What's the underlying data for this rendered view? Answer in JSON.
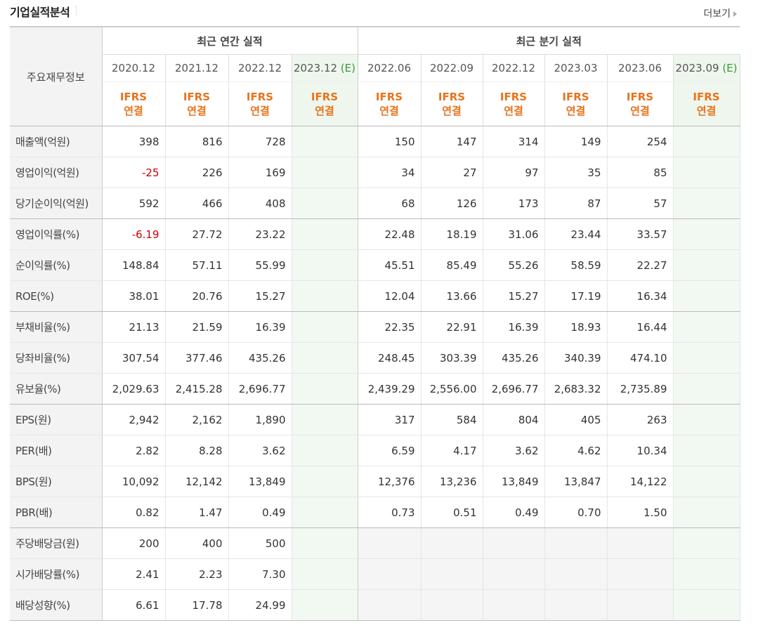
{
  "header": {
    "title": "기업실적분석",
    "more_label": "더보기"
  },
  "table": {
    "row_header": "주요재무정보",
    "annual_group": "최근 연간 실적",
    "quarter_group": "최근 분기 실적",
    "periods": [
      {
        "label": "2020.12",
        "est": ""
      },
      {
        "label": "2021.12",
        "est": ""
      },
      {
        "label": "2022.12",
        "est": ""
      },
      {
        "label": "2023.12",
        "est": "(E)"
      },
      {
        "label": "2022.06",
        "est": ""
      },
      {
        "label": "2022.09",
        "est": ""
      },
      {
        "label": "2022.12",
        "est": ""
      },
      {
        "label": "2023.03",
        "est": ""
      },
      {
        "label": "2023.06",
        "est": ""
      },
      {
        "label": "2023.09",
        "est": "(E)"
      }
    ],
    "ifrs_line1": "IFRS",
    "ifrs_line2": "연결",
    "rows": [
      {
        "label": "매출액(억원)",
        "values": [
          "398",
          "816",
          "728",
          "",
          "150",
          "147",
          "314",
          "149",
          "254",
          ""
        ]
      },
      {
        "label": "영업이익(억원)",
        "values": [
          "-25",
          "226",
          "169",
          "",
          "34",
          "27",
          "97",
          "35",
          "85",
          ""
        ]
      },
      {
        "label": "당기순이익(억원)",
        "values": [
          "592",
          "466",
          "408",
          "",
          "68",
          "126",
          "173",
          "87",
          "57",
          ""
        ]
      },
      {
        "label": "영업이익률(%)",
        "values": [
          "-6.19",
          "27.72",
          "23.22",
          "",
          "22.48",
          "18.19",
          "31.06",
          "23.44",
          "33.57",
          ""
        ]
      },
      {
        "label": "순이익률(%)",
        "values": [
          "148.84",
          "57.11",
          "55.99",
          "",
          "45.51",
          "85.49",
          "55.26",
          "58.59",
          "22.27",
          ""
        ]
      },
      {
        "label": "ROE(%)",
        "values": [
          "38.01",
          "20.76",
          "15.27",
          "",
          "12.04",
          "13.66",
          "15.27",
          "17.19",
          "16.34",
          ""
        ]
      },
      {
        "label": "부채비율(%)",
        "values": [
          "21.13",
          "21.59",
          "16.39",
          "",
          "22.35",
          "22.91",
          "16.39",
          "18.93",
          "16.44",
          ""
        ]
      },
      {
        "label": "당좌비율(%)",
        "values": [
          "307.54",
          "377.46",
          "435.26",
          "",
          "248.45",
          "303.39",
          "435.26",
          "340.39",
          "474.10",
          ""
        ]
      },
      {
        "label": "유보율(%)",
        "values": [
          "2,029.63",
          "2,415.28",
          "2,696.77",
          "",
          "2,439.29",
          "2,556.00",
          "2,696.77",
          "2,683.32",
          "2,735.89",
          ""
        ]
      },
      {
        "label": "EPS(원)",
        "values": [
          "2,942",
          "2,162",
          "1,890",
          "",
          "317",
          "584",
          "804",
          "405",
          "263",
          ""
        ]
      },
      {
        "label": "PER(배)",
        "values": [
          "2.82",
          "8.28",
          "3.62",
          "",
          "6.59",
          "4.17",
          "3.62",
          "4.62",
          "10.34",
          ""
        ]
      },
      {
        "label": "BPS(원)",
        "values": [
          "10,092",
          "12,142",
          "13,849",
          "",
          "12,376",
          "13,236",
          "13,849",
          "13,847",
          "14,122",
          ""
        ]
      },
      {
        "label": "PBR(배)",
        "values": [
          "0.82",
          "1.47",
          "0.49",
          "",
          "0.73",
          "0.51",
          "0.49",
          "0.70",
          "1.50",
          ""
        ]
      },
      {
        "label": "주당배당금(원)",
        "values": [
          "200",
          "400",
          "500",
          "",
          "",
          "",
          "",
          "",
          "",
          ""
        ]
      },
      {
        "label": "시가배당률(%)",
        "values": [
          "2.41",
          "2.23",
          "7.30",
          "",
          "",
          "",
          "",
          "",
          "",
          ""
        ]
      },
      {
        "label": "배당성향(%)",
        "values": [
          "6.61",
          "17.78",
          "24.99",
          "",
          "",
          "",
          "",
          "",
          "",
          ""
        ]
      }
    ],
    "colors": {
      "negative": "#cc0000",
      "ifrs": "#e8731b",
      "estimate_bg": "#eef6ee",
      "estimate_text": "#3a9a3a"
    }
  }
}
